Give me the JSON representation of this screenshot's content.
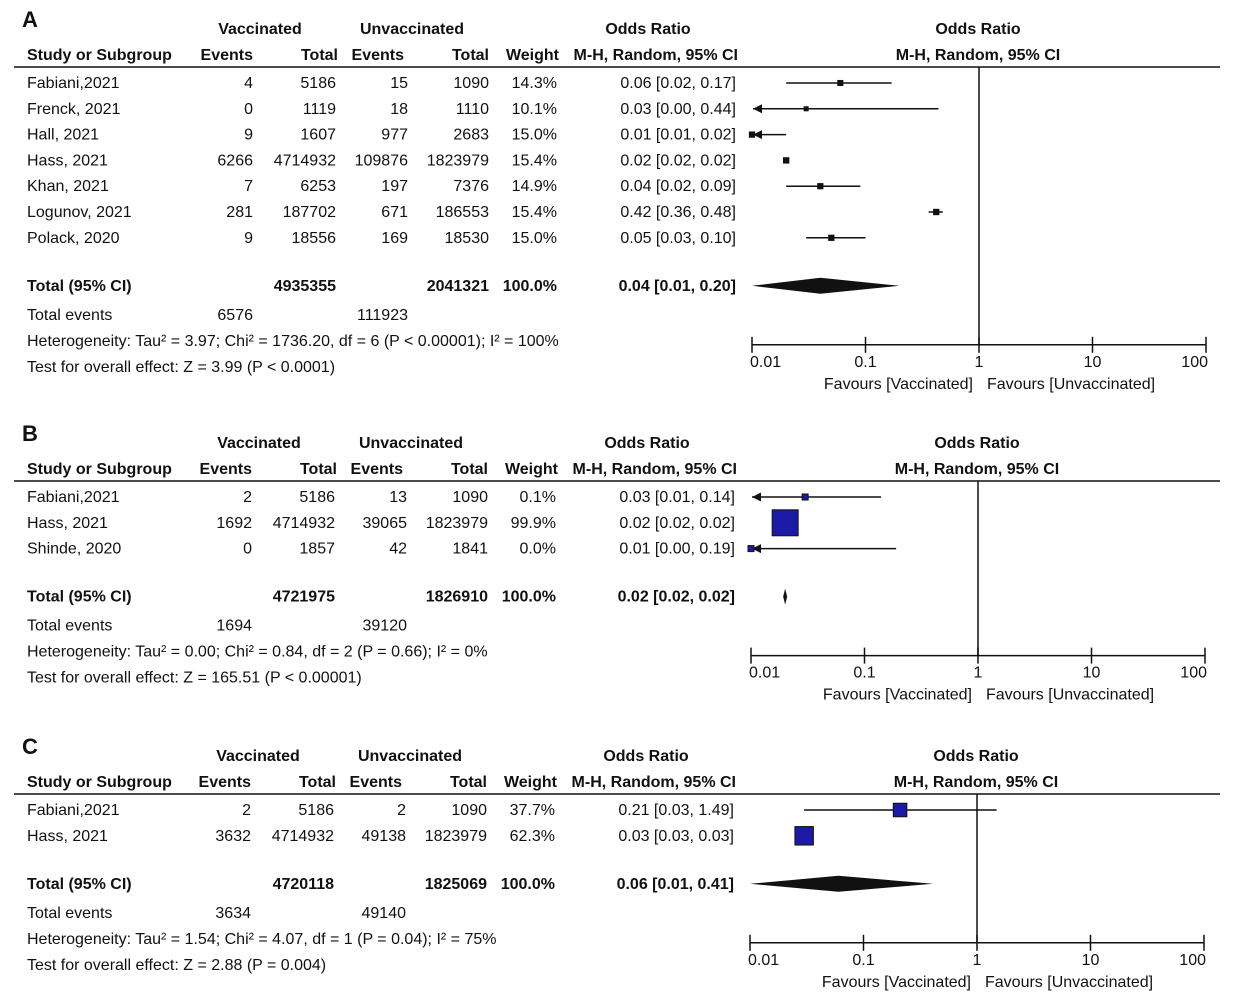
{
  "headers": {
    "vaccinated": "Vaccinated",
    "unvaccinated": "Unvaccinated",
    "odds_ratio": "Odds Ratio",
    "study": "Study or Subgroup",
    "events": "Events",
    "total": "Total",
    "weight": "Weight",
    "method": "M-H, Random, 95% CI"
  },
  "axis": {
    "ticks": [
      "0.01",
      "0.1",
      "1",
      "10",
      "100"
    ],
    "tick_values": [
      0.01,
      0.1,
      1,
      10,
      100
    ],
    "favours_left": "Favours [Vaccinated]",
    "favours_right": "Favours [Unvaccinated]"
  },
  "colors": {
    "box_fill": "#1a1aa6",
    "ink": "#111111"
  },
  "chart_data": [
    {
      "type": "forest",
      "panel": "A",
      "studies": [
        {
          "name": "Fabiani,2021",
          "ve": "4",
          "vt": "5186",
          "ue": "15",
          "ut": "1090",
          "weight": "14.3%",
          "ci_text": "0.06 [0.02, 0.17]",
          "or": 0.06,
          "lo": 0.02,
          "hi": 0.17
        },
        {
          "name": "Frenck, 2021",
          "ve": "0",
          "vt": "1119",
          "ue": "18",
          "ut": "1110",
          "weight": "10.1%",
          "ci_text": "0.03 [0.00, 0.44]",
          "or": 0.03,
          "lo": 0.005,
          "hi": 0.44,
          "lo_arrow": true
        },
        {
          "name": "Hall, 2021",
          "ve": "9",
          "vt": "1607",
          "ue": "977",
          "ut": "2683",
          "weight": "15.0%",
          "ci_text": "0.01 [0.01, 0.02]",
          "or": 0.01,
          "lo": 0.005,
          "hi": 0.02,
          "lo_arrow": true
        },
        {
          "name": "Hass, 2021",
          "ve": "6266",
          "vt": "4714932",
          "ue": "109876",
          "ut": "1823979",
          "weight": "15.4%",
          "ci_text": "0.02 [0.02, 0.02]",
          "or": 0.02,
          "lo": 0.02,
          "hi": 0.02
        },
        {
          "name": "Khan, 2021",
          "ve": "7",
          "vt": "6253",
          "ue": "197",
          "ut": "7376",
          "weight": "14.9%",
          "ci_text": "0.04 [0.02, 0.09]",
          "or": 0.04,
          "lo": 0.02,
          "hi": 0.09
        },
        {
          "name": "Logunov, 2021",
          "ve": "281",
          "vt": "187702",
          "ue": "671",
          "ut": "186553",
          "weight": "15.4%",
          "ci_text": "0.42 [0.36, 0.48]",
          "or": 0.42,
          "lo": 0.36,
          "hi": 0.48
        },
        {
          "name": "Polack, 2020",
          "ve": "9",
          "vt": "18556",
          "ue": "169",
          "ut": "18530",
          "weight": "15.0%",
          "ci_text": "0.05 [0.03, 0.10]",
          "or": 0.05,
          "lo": 0.03,
          "hi": 0.1
        }
      ],
      "total": {
        "label": "Total (95% CI)",
        "vt": "4935355",
        "ut": "2041321",
        "weight": "100.0%",
        "ci_text": "0.04 [0.01, 0.20]",
        "or": 0.04,
        "lo": 0.01,
        "hi": 0.2
      },
      "events": {
        "label": "Total events",
        "ve": "6576",
        "ue": "111923"
      },
      "heterogeneity": "Heterogeneity: Tau² = 3.97; Chi² = 1736.20, df = 6 (P < 0.00001); I² = 100%",
      "overall": "Test for overall effect: Z = 3.99 (P < 0.0001)"
    },
    {
      "type": "forest",
      "panel": "B",
      "studies": [
        {
          "name": "Fabiani,2021",
          "ve": "2",
          "vt": "5186",
          "ue": "13",
          "ut": "1090",
          "weight": "0.1%",
          "ci_text": "0.03 [0.01, 0.14]",
          "or": 0.03,
          "lo": 0.005,
          "hi": 0.14,
          "lo_arrow": true
        },
        {
          "name": "Hass, 2021",
          "ve": "1692",
          "vt": "4714932",
          "ue": "39065",
          "ut": "1823979",
          "weight": "99.9%",
          "ci_text": "0.02 [0.02, 0.02]",
          "or": 0.02,
          "lo": 0.02,
          "hi": 0.02
        },
        {
          "name": "Shinde, 2020",
          "ve": "0",
          "vt": "1857",
          "ue": "42",
          "ut": "1841",
          "weight": "0.0%",
          "ci_text": "0.01 [0.00, 0.19]",
          "or": 0.01,
          "lo": 0.005,
          "hi": 0.19,
          "lo_arrow": true
        }
      ],
      "total": {
        "label": "Total (95% CI)",
        "vt": "4721975",
        "ut": "1826910",
        "weight": "100.0%",
        "ci_text": "0.02 [0.02, 0.02]",
        "or": 0.02,
        "lo": 0.02,
        "hi": 0.02
      },
      "events": {
        "label": "Total events",
        "ve": "1694",
        "ue": "39120"
      },
      "heterogeneity": "Heterogeneity: Tau² = 0.00; Chi² = 0.84, df = 2 (P = 0.66); I² = 0%",
      "overall": "Test for overall effect: Z = 165.51 (P < 0.00001)"
    },
    {
      "type": "forest",
      "panel": "C",
      "studies": [
        {
          "name": "Fabiani,2021",
          "ve": "2",
          "vt": "5186",
          "ue": "2",
          "ut": "1090",
          "weight": "37.7%",
          "ci_text": "0.21 [0.03, 1.49]",
          "or": 0.21,
          "lo": 0.03,
          "hi": 1.49
        },
        {
          "name": "Hass, 2021",
          "ve": "3632",
          "vt": "4714932",
          "ue": "49138",
          "ut": "1823979",
          "weight": "62.3%",
          "ci_text": "0.03 [0.03, 0.03]",
          "or": 0.03,
          "lo": 0.03,
          "hi": 0.03
        }
      ],
      "total": {
        "label": "Total (95% CI)",
        "vt": "4720118",
        "ut": "1825069",
        "weight": "100.0%",
        "ci_text": "0.06 [0.01, 0.41]",
        "or": 0.06,
        "lo": 0.01,
        "hi": 0.41
      },
      "events": {
        "label": "Total events",
        "ve": "3634",
        "ue": "49140"
      },
      "heterogeneity": "Heterogeneity: Tau² = 1.54; Chi² = 4.07, df = 1 (P = 0.04); I² = 75%",
      "overall": "Test for overall effect: Z = 2.88 (P = 0.004)"
    }
  ]
}
